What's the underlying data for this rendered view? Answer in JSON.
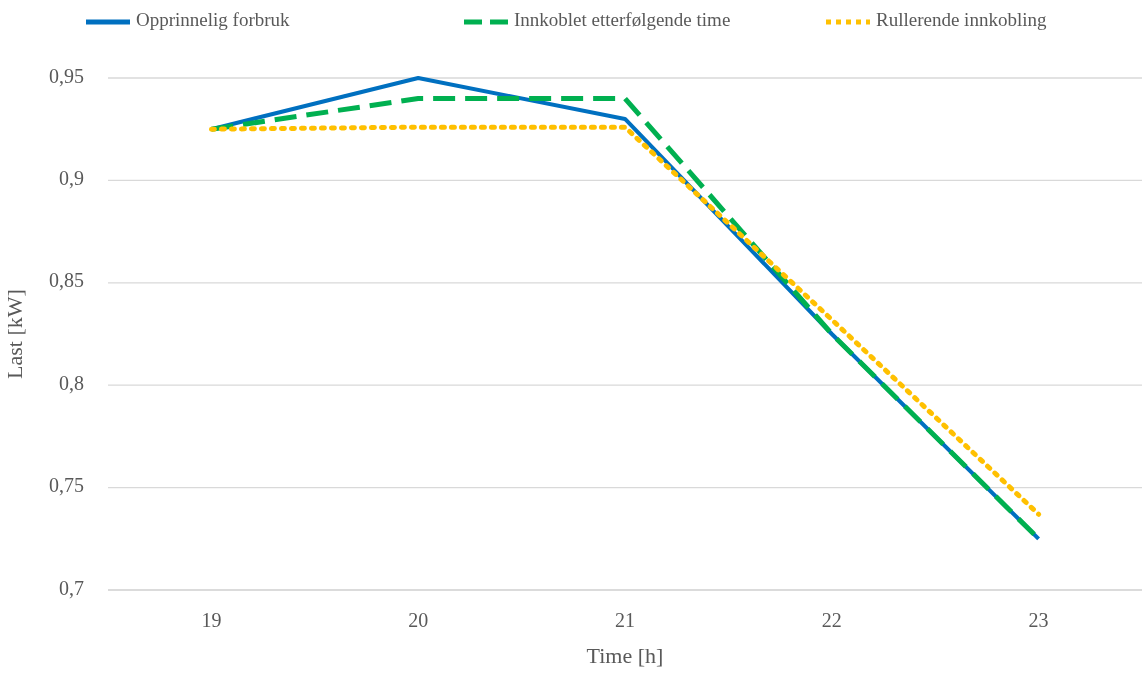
{
  "chart_data": {
    "type": "line",
    "xlabel": "Time [h]",
    "ylabel": "Last [kW]",
    "categories": [
      "19",
      "20",
      "21",
      "22",
      "23"
    ],
    "series": [
      {
        "name": "Opprinnelig forbruk",
        "color": "#0070c0",
        "line_style": "solid",
        "values": [
          0.925,
          0.95,
          0.93,
          0.825,
          0.725
        ]
      },
      {
        "name": "Innkoblet etterfølgende time",
        "color": "#00b050",
        "line_style": "dashed",
        "values": [
          0.925,
          0.94,
          0.94,
          0.825,
          0.725
        ]
      },
      {
        "name": "Rullerende innkobling",
        "color": "#ffc000",
        "line_style": "dotted",
        "values": [
          0.925,
          0.926,
          0.926,
          0.832,
          0.737
        ]
      }
    ],
    "ylim": [
      0.7,
      0.95
    ],
    "yticks": [
      {
        "value": 0.7,
        "label": "0,7"
      },
      {
        "value": 0.75,
        "label": "0,75"
      },
      {
        "value": 0.8,
        "label": "0,8"
      },
      {
        "value": 0.85,
        "label": "0,85"
      },
      {
        "value": 0.9,
        "label": "0,9"
      },
      {
        "value": 0.95,
        "label": "0,95"
      }
    ],
    "grid": "y",
    "legend": "top",
    "marker": "none"
  }
}
